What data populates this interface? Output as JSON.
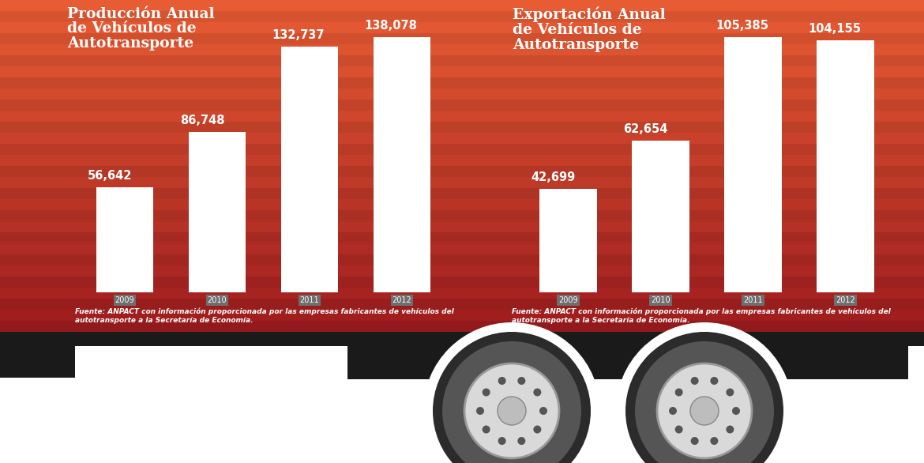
{
  "chart_data": [
    {
      "type": "bar",
      "title": "Producción Anual de Vehículos de Autotransporte",
      "categories": [
        "2009",
        "2010",
        "2011",
        "2012"
      ],
      "values": [
        56642,
        86748,
        132737,
        138078
      ],
      "value_labels": [
        "56,642",
        "86,748",
        "132,737",
        "138,078"
      ],
      "color": "#ffffff",
      "data_labels": true,
      "tick_labels": "x",
      "source": "Fuente: ANPACT con información proporcionada por las empresas fabricantes de vehículos del autotransporte a la Secretaría de Economía."
    },
    {
      "type": "bar",
      "title": "Exportación Anual de Vehículos de Autotransporte",
      "categories": [
        "2009",
        "2010",
        "2011",
        "2012"
      ],
      "values": [
        42699,
        62654,
        105385,
        104155
      ],
      "value_labels": [
        "42,699",
        "62,654",
        "105,385",
        "104,155"
      ],
      "color": "#ffffff",
      "data_labels": true,
      "tick_labels": "x",
      "source": "Fuente: ANPACT con información proporcionada por las empresas fabricantes de vehículos del autotransporte a la Secretaría de Economía."
    }
  ]
}
